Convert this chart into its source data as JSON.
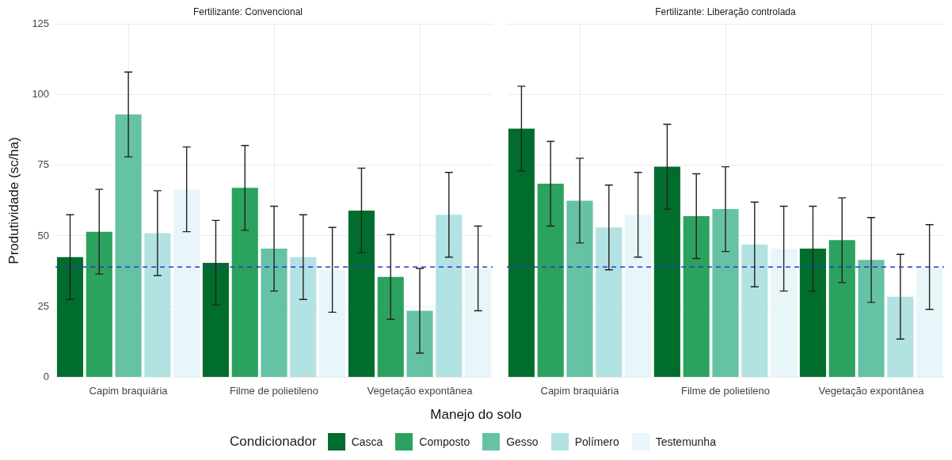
{
  "chart_data": [
    {
      "type": "bar",
      "title": "Fertilizante: Convencional",
      "xlabel": "Manejo do solo",
      "ylabel": "Produtividade (sc/ha)",
      "legend_title": "Condicionador",
      "legend": "bottom",
      "grid": true,
      "categories": [
        "Capim braquiária",
        "Filme de polietileno",
        "Vegetação expontânea"
      ],
      "ylim": [
        0,
        125
      ],
      "yticks": [
        0,
        25,
        50,
        75,
        100,
        125
      ],
      "ref_lines": [
        {
          "axis": "y",
          "value": 39,
          "color": "#3333cc",
          "line_style": "dashed"
        }
      ],
      "series": [
        {
          "name": "Casca",
          "color": "#006d2c",
          "values": [
            42.5,
            40.5,
            59
          ],
          "errors": [
            15,
            15,
            15
          ]
        },
        {
          "name": "Composto",
          "color": "#2ca25f",
          "values": [
            51.5,
            67,
            35.5
          ],
          "errors": [
            15,
            15,
            15
          ]
        },
        {
          "name": "Gesso",
          "color": "#66c2a4",
          "values": [
            93,
            45.5,
            23.5
          ],
          "errors": [
            15,
            15,
            15
          ]
        },
        {
          "name": "Polímero",
          "color": "#b2e2e2",
          "values": [
            51,
            42.5,
            57.5
          ],
          "errors": [
            15,
            15,
            15
          ]
        },
        {
          "name": "Testemunha",
          "color": "#e8f6f9",
          "values": [
            66.5,
            38,
            38.5
          ],
          "errors": [
            15,
            15,
            15
          ]
        }
      ]
    },
    {
      "type": "bar",
      "title": "Fertilizante: Liberação controlada",
      "grid": true,
      "tick_labels": "x",
      "categories": [
        "Capim braquiária",
        "Filme de polietileno",
        "Vegetação expontânea"
      ],
      "ylim": [
        0,
        125
      ],
      "yticks": [
        0,
        25,
        50,
        75,
        100,
        125
      ],
      "ref_lines": [
        {
          "axis": "y",
          "value": 39,
          "color": "#3333cc",
          "line_style": "dashed"
        }
      ],
      "series": [
        {
          "color": "#006d2c",
          "values": [
            88,
            74.5,
            45.5
          ],
          "errors": [
            15,
            15,
            15
          ]
        },
        {
          "color": "#2ca25f",
          "values": [
            68.5,
            57,
            48.5
          ],
          "errors": [
            15,
            15,
            15
          ]
        },
        {
          "color": "#66c2a4",
          "values": [
            62.5,
            59.5,
            41.5
          ],
          "errors": [
            15,
            15,
            15
          ]
        },
        {
          "color": "#b2e2e2",
          "values": [
            53,
            47,
            28.5
          ],
          "errors": [
            15,
            15,
            15
          ]
        },
        {
          "color": "#e8f6f9",
          "values": [
            57.5,
            45.5,
            39
          ],
          "errors": [
            15,
            15,
            15
          ]
        }
      ]
    }
  ]
}
